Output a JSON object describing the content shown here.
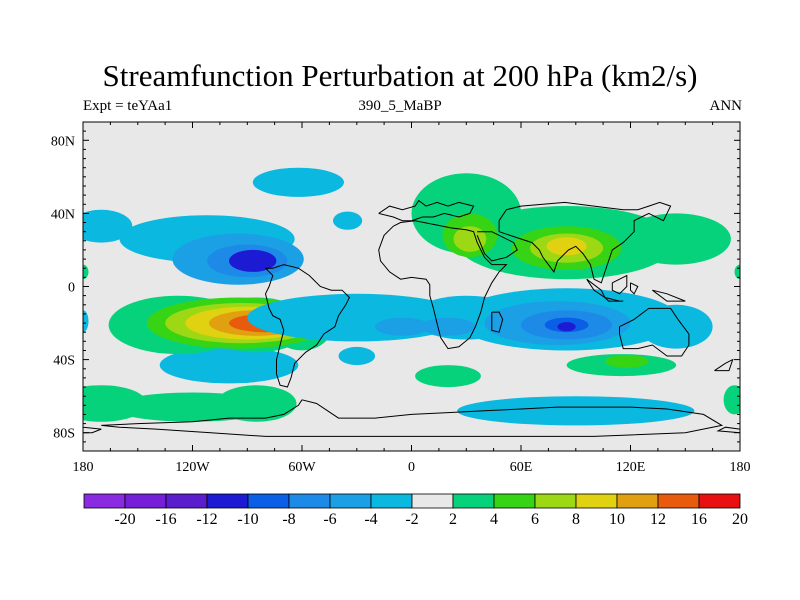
{
  "chart_data": {
    "type": "heatmap",
    "title": "Streamfunction Perturbation at 200 hPa (km2/s)",
    "left_label": "Expt = teYAa1",
    "center_label": "390_5_MaBP",
    "right_label": "ANN",
    "xlim": [
      -180,
      180
    ],
    "ylim": [
      -90,
      90
    ],
    "xticks": [
      {
        "value": -180,
        "label": "180"
      },
      {
        "value": -120,
        "label": "120W"
      },
      {
        "value": -60,
        "label": "60W"
      },
      {
        "value": 0,
        "label": "0"
      },
      {
        "value": 60,
        "label": "60E"
      },
      {
        "value": 120,
        "label": "120E"
      },
      {
        "value": 180,
        "label": "180"
      }
    ],
    "yticks": [
      {
        "value": 80,
        "label": "80N"
      },
      {
        "value": 40,
        "label": "40N"
      },
      {
        "value": 0,
        "label": "0"
      },
      {
        "value": -40,
        "label": "40S"
      },
      {
        "value": -80,
        "label": "80S"
      }
    ],
    "minor_xticks": [
      -165,
      -150,
      -135,
      -105,
      -90,
      -75,
      -45,
      -30,
      -15,
      15,
      30,
      45,
      75,
      90,
      105,
      135,
      150,
      165
    ],
    "minor_yticks": [
      -85,
      -75,
      -70,
      -65,
      -60,
      -55,
      -50,
      -45,
      -35,
      -30,
      -25,
      -20,
      -15,
      -10,
      -5,
      5,
      10,
      15,
      20,
      25,
      30,
      35,
      45,
      50,
      55,
      60,
      65,
      70,
      75,
      85
    ],
    "colorbar": {
      "levels": [
        -20,
        -16,
        -12,
        -10,
        -8,
        -6,
        -4,
        -2,
        2,
        4,
        6,
        8,
        10,
        12,
        16,
        20
      ],
      "labels": [
        "-20",
        "-16",
        "-12",
        "-10",
        "-8",
        "-6",
        "-4",
        "-2",
        "2",
        "4",
        "6",
        "8",
        "10",
        "12",
        "16",
        "20"
      ],
      "colors": [
        "#8a2be2",
        "#7520d8",
        "#5a1ecc",
        "#1c1ad2",
        "#0b5ee6",
        "#1e8ae8",
        "#1ba0e6",
        "#0bb8e0",
        "#e8e8e8",
        "#07d27c",
        "#36d414",
        "#9cd814",
        "#e0d210",
        "#e0a010",
        "#e85a0c",
        "#e81010"
      ]
    },
    "features": [
      {
        "lon": -35,
        "lat": 36,
        "rlon": 8,
        "rlat": 5,
        "value": -3
      },
      {
        "lon": -112,
        "lat": 26,
        "rlon": 48,
        "rlat": 13,
        "value": -3
      },
      {
        "lon": -170,
        "lat": 33,
        "rlon": 17,
        "rlat": 9,
        "value": -3
      },
      {
        "lon": -95,
        "lat": 15,
        "rlon": 36,
        "rlat": 14,
        "value": -6
      },
      {
        "lon": -90,
        "lat": 14,
        "rlon": 22,
        "rlat": 9,
        "value": -8
      },
      {
        "lon": -87,
        "lat": 14,
        "rlon": 13,
        "rlat": 6,
        "value": -11
      },
      {
        "lon": -30,
        "lat": -38,
        "rlon": 10,
        "rlat": 5,
        "value": -3
      },
      {
        "lon": -62,
        "lat": 57,
        "rlon": 25,
        "rlat": 8,
        "value": -3
      },
      {
        "lon": -100,
        "lat": -43,
        "rlon": 38,
        "rlat": 10,
        "value": -3
      },
      {
        "lon": -128,
        "lat": -21,
        "rlon": 38,
        "rlat": 16,
        "value": 3
      },
      {
        "lon": -85,
        "lat": -21,
        "rlon": 30,
        "rlat": 15,
        "value": 3
      },
      {
        "lon": -60,
        "lat": -23,
        "rlon": 16,
        "rlat": 12,
        "value": 3
      },
      {
        "lon": -95,
        "lat": -20,
        "rlon": 50,
        "rlat": 14,
        "value": 5
      },
      {
        "lon": -93,
        "lat": -20,
        "rlon": 42,
        "rlat": 11,
        "value": 7
      },
      {
        "lon": -90,
        "lat": -20,
        "rlon": 34,
        "rlat": 9,
        "value": 9
      },
      {
        "lon": -85,
        "lat": -20,
        "rlon": 26,
        "rlat": 7,
        "value": 11
      },
      {
        "lon": -80,
        "lat": -20,
        "rlon": 20,
        "rlat": 5,
        "value": 14
      },
      {
        "lon": -170,
        "lat": -64,
        "rlon": 25,
        "rlat": 10,
        "value": 3
      },
      {
        "lon": -120,
        "lat": -66,
        "rlon": 45,
        "rlat": 8,
        "value": 3
      },
      {
        "lon": -85,
        "lat": -64,
        "rlon": 22,
        "rlat": 10,
        "value": 3
      },
      {
        "lon": -30,
        "lat": -17,
        "rlon": 60,
        "rlat": 13,
        "value": -3
      },
      {
        "lon": 30,
        "lat": -17,
        "rlon": 30,
        "rlat": 12,
        "value": -3
      },
      {
        "lon": 85,
        "lat": -18,
        "rlon": 62,
        "rlat": 17,
        "value": -3
      },
      {
        "lon": 145,
        "lat": -22,
        "rlon": 20,
        "rlat": 12,
        "value": -3
      },
      {
        "lon": -5,
        "lat": -22,
        "rlon": 15,
        "rlat": 5,
        "value": -5
      },
      {
        "lon": 20,
        "lat": -22,
        "rlon": 15,
        "rlat": 5,
        "value": -5
      },
      {
        "lon": 80,
        "lat": -20,
        "rlon": 40,
        "rlat": 12,
        "value": -5
      },
      {
        "lon": 85,
        "lat": -21,
        "rlon": 25,
        "rlat": 8,
        "value": -7
      },
      {
        "lon": 85,
        "lat": -21,
        "rlon": 12,
        "rlat": 4,
        "value": -9
      },
      {
        "lon": 85,
        "lat": -22,
        "rlon": 5,
        "rlat": 2.5,
        "value": -11
      },
      {
        "lon": 30,
        "lat": 40,
        "rlon": 30,
        "rlat": 22,
        "value": 3
      },
      {
        "lon": 85,
        "lat": 24,
        "rlon": 60,
        "rlat": 20,
        "value": 3
      },
      {
        "lon": 145,
        "lat": 26,
        "rlon": 30,
        "rlat": 14,
        "value": 3
      },
      {
        "lon": 32,
        "lat": 28,
        "rlon": 15,
        "rlat": 12,
        "value": 5
      },
      {
        "lon": 32,
        "lat": 26,
        "rlon": 9,
        "rlat": 7,
        "value": 7
      },
      {
        "lon": 85,
        "lat": 21,
        "rlon": 30,
        "rlat": 12,
        "value": 5
      },
      {
        "lon": 85,
        "lat": 21,
        "rlon": 20,
        "rlat": 8,
        "value": 7
      },
      {
        "lon": 85,
        "lat": 22,
        "rlon": 11,
        "rlat": 5,
        "value": 9
      },
      {
        "lon": 115,
        "lat": -43,
        "rlon": 30,
        "rlat": 6,
        "value": 3
      },
      {
        "lon": 118,
        "lat": -41,
        "rlon": 12,
        "rlat": 3.5,
        "value": 5
      },
      {
        "lon": 20,
        "lat": -49,
        "rlon": 18,
        "rlat": 6,
        "value": 3
      },
      {
        "lon": 90,
        "lat": -68,
        "rlon": 65,
        "rlat": 8,
        "value": -3
      },
      {
        "lon": 177,
        "lat": -62,
        "rlon": 6,
        "rlat": 8,
        "value": 3
      },
      {
        "lon": -180,
        "lat": -19,
        "rlon": 3,
        "rlat": 6,
        "value": -3
      },
      {
        "lon": 180,
        "lat": 8,
        "rlon": 3,
        "rlat": 4,
        "value": 3
      },
      {
        "lon": -180,
        "lat": 8,
        "rlon": 3,
        "rlat": 4,
        "value": 3
      }
    ],
    "coastlines": [
      [
        [
          -18,
          40
        ],
        [
          -12,
          44
        ],
        [
          -5,
          42
        ],
        [
          2,
          44
        ],
        [
          4,
          47
        ],
        [
          8,
          44
        ],
        [
          14,
          46
        ],
        [
          20,
          44
        ],
        [
          26,
          46
        ],
        [
          34,
          44
        ],
        [
          32,
          40
        ],
        [
          26,
          38
        ],
        [
          18,
          40
        ],
        [
          12,
          38
        ],
        [
          6,
          38
        ],
        [
          0,
          36
        ],
        [
          -5,
          36
        ],
        [
          -10,
          38
        ],
        [
          -18,
          40
        ]
      ],
      [
        [
          -10,
          33
        ],
        [
          -15,
          28
        ],
        [
          -18,
          20
        ],
        [
          -17,
          14
        ],
        [
          -12,
          8
        ],
        [
          -6,
          4
        ],
        [
          0,
          5
        ],
        [
          8,
          4
        ],
        [
          10,
          1
        ],
        [
          10,
          -5
        ],
        [
          12,
          -12
        ],
        [
          14,
          -20
        ],
        [
          16,
          -28
        ],
        [
          20,
          -34
        ],
        [
          26,
          -33
        ],
        [
          32,
          -28
        ],
        [
          35,
          -22
        ],
        [
          38,
          -14
        ],
        [
          40,
          -6
        ],
        [
          44,
          2
        ],
        [
          48,
          8
        ],
        [
          52,
          12
        ],
        [
          44,
          12
        ],
        [
          40,
          16
        ],
        [
          36,
          24
        ],
        [
          34,
          30
        ],
        [
          30,
          31
        ],
        [
          22,
          32
        ],
        [
          12,
          34
        ],
        [
          2,
          36
        ],
        [
          -6,
          35
        ],
        [
          -10,
          33
        ]
      ],
      [
        [
          44,
          -14
        ],
        [
          48,
          -14
        ],
        [
          50,
          -18
        ],
        [
          48,
          -25
        ],
        [
          44,
          -24
        ],
        [
          44,
          -14
        ]
      ],
      [
        [
          36,
          30
        ],
        [
          44,
          30
        ],
        [
          48,
          28
        ],
        [
          56,
          24
        ],
        [
          58,
          20
        ],
        [
          52,
          16
        ],
        [
          44,
          14
        ],
        [
          40,
          18
        ],
        [
          36,
          28
        ]
      ],
      [
        [
          48,
          30
        ],
        [
          60,
          26
        ],
        [
          66,
          24
        ],
        [
          70,
          20
        ],
        [
          72,
          16
        ],
        [
          78,
          8
        ],
        [
          80,
          14
        ],
        [
          86,
          20
        ],
        [
          90,
          22
        ],
        [
          94,
          18
        ],
        [
          98,
          12
        ],
        [
          100,
          4
        ],
        [
          104,
          2
        ],
        [
          106,
          8
        ],
        [
          108,
          14
        ],
        [
          110,
          20
        ],
        [
          116,
          24
        ],
        [
          122,
          30
        ],
        [
          122,
          36
        ],
        [
          126,
          38
        ],
        [
          130,
          40
        ],
        [
          138,
          36
        ],
        [
          142,
          44
        ],
        [
          136,
          46
        ],
        [
          130,
          44
        ],
        [
          124,
          42
        ],
        [
          116,
          42
        ],
        [
          100,
          44
        ],
        [
          84,
          46
        ],
        [
          60,
          44
        ],
        [
          52,
          42
        ],
        [
          48,
          36
        ],
        [
          48,
          30
        ]
      ],
      [
        [
          96,
          4
        ],
        [
          104,
          -2
        ],
        [
          106,
          -6
        ],
        [
          100,
          -2
        ],
        [
          96,
          4
        ]
      ],
      [
        [
          106,
          -6
        ],
        [
          114,
          -8
        ],
        [
          116,
          -8
        ],
        [
          108,
          -8
        ],
        [
          106,
          -6
        ]
      ],
      [
        [
          110,
          2
        ],
        [
          118,
          6
        ],
        [
          118,
          0
        ],
        [
          114,
          -4
        ],
        [
          110,
          -2
        ],
        [
          110,
          2
        ]
      ],
      [
        [
          120,
          2
        ],
        [
          124,
          0
        ],
        [
          122,
          -4
        ],
        [
          120,
          -2
        ],
        [
          120,
          2
        ]
      ],
      [
        [
          132,
          -2
        ],
        [
          140,
          -4
        ],
        [
          150,
          -8
        ],
        [
          140,
          -8
        ],
        [
          132,
          -2
        ]
      ],
      [
        [
          114,
          -22
        ],
        [
          122,
          -18
        ],
        [
          130,
          -12
        ],
        [
          136,
          -12
        ],
        [
          142,
          -12
        ],
        [
          146,
          -18
        ],
        [
          152,
          -26
        ],
        [
          152,
          -32
        ],
        [
          148,
          -38
        ],
        [
          140,
          -38
        ],
        [
          132,
          -32
        ],
        [
          124,
          -34
        ],
        [
          116,
          -34
        ],
        [
          114,
          -26
        ],
        [
          114,
          -22
        ]
      ],
      [
        [
          166,
          -46
        ],
        [
          172,
          -42
        ],
        [
          176,
          -40
        ],
        [
          174,
          -46
        ],
        [
          168,
          -46
        ],
        [
          166,
          -46
        ]
      ],
      [
        [
          -80,
          10
        ],
        [
          -76,
          6
        ],
        [
          -78,
          0
        ],
        [
          -80,
          -4
        ],
        [
          -78,
          -12
        ],
        [
          -76,
          -16
        ],
        [
          -72,
          -18
        ],
        [
          -70,
          -24
        ],
        [
          -72,
          -32
        ],
        [
          -74,
          -40
        ],
        [
          -74,
          -48
        ],
        [
          -72,
          -54
        ],
        [
          -68,
          -55
        ],
        [
          -66,
          -50
        ],
        [
          -64,
          -42
        ],
        [
          -58,
          -36
        ],
        [
          -52,
          -32
        ],
        [
          -48,
          -26
        ],
        [
          -42,
          -22
        ],
        [
          -40,
          -16
        ],
        [
          -36,
          -10
        ],
        [
          -34,
          -6
        ],
        [
          -38,
          -2
        ],
        [
          -44,
          -2
        ],
        [
          -50,
          0
        ],
        [
          -56,
          6
        ],
        [
          -62,
          10
        ],
        [
          -70,
          12
        ],
        [
          -76,
          10
        ],
        [
          -80,
          10
        ]
      ],
      [
        [
          -60,
          -62
        ],
        [
          -52,
          -64
        ],
        [
          -40,
          -72
        ],
        [
          -20,
          -72
        ],
        [
          0,
          -70
        ],
        [
          20,
          -69
        ],
        [
          40,
          -68
        ],
        [
          60,
          -67
        ],
        [
          80,
          -66
        ],
        [
          100,
          -66
        ],
        [
          120,
          -66
        ],
        [
          140,
          -67
        ],
        [
          160,
          -70
        ],
        [
          170,
          -76
        ],
        [
          150,
          -80
        ],
        [
          100,
          -82
        ],
        [
          50,
          -82
        ],
        [
          0,
          -82
        ],
        [
          -40,
          -82
        ],
        [
          -80,
          -82
        ],
        [
          -110,
          -80
        ],
        [
          -140,
          -78
        ],
        [
          -160,
          -77
        ],
        [
          -170,
          -76
        ],
        [
          -150,
          -75
        ],
        [
          -120,
          -74
        ],
        [
          -100,
          -72
        ],
        [
          -80,
          -72
        ],
        [
          -70,
          -70
        ],
        [
          -62,
          -65
        ],
        [
          -60,
          -62
        ]
      ],
      [
        [
          -180,
          -77
        ],
        [
          -170,
          -78
        ],
        [
          -175,
          -80
        ],
        [
          -180,
          -80
        ]
      ],
      [
        [
          180,
          -78
        ],
        [
          172,
          -77
        ],
        [
          168,
          -79
        ],
        [
          180,
          -80
        ]
      ]
    ]
  }
}
